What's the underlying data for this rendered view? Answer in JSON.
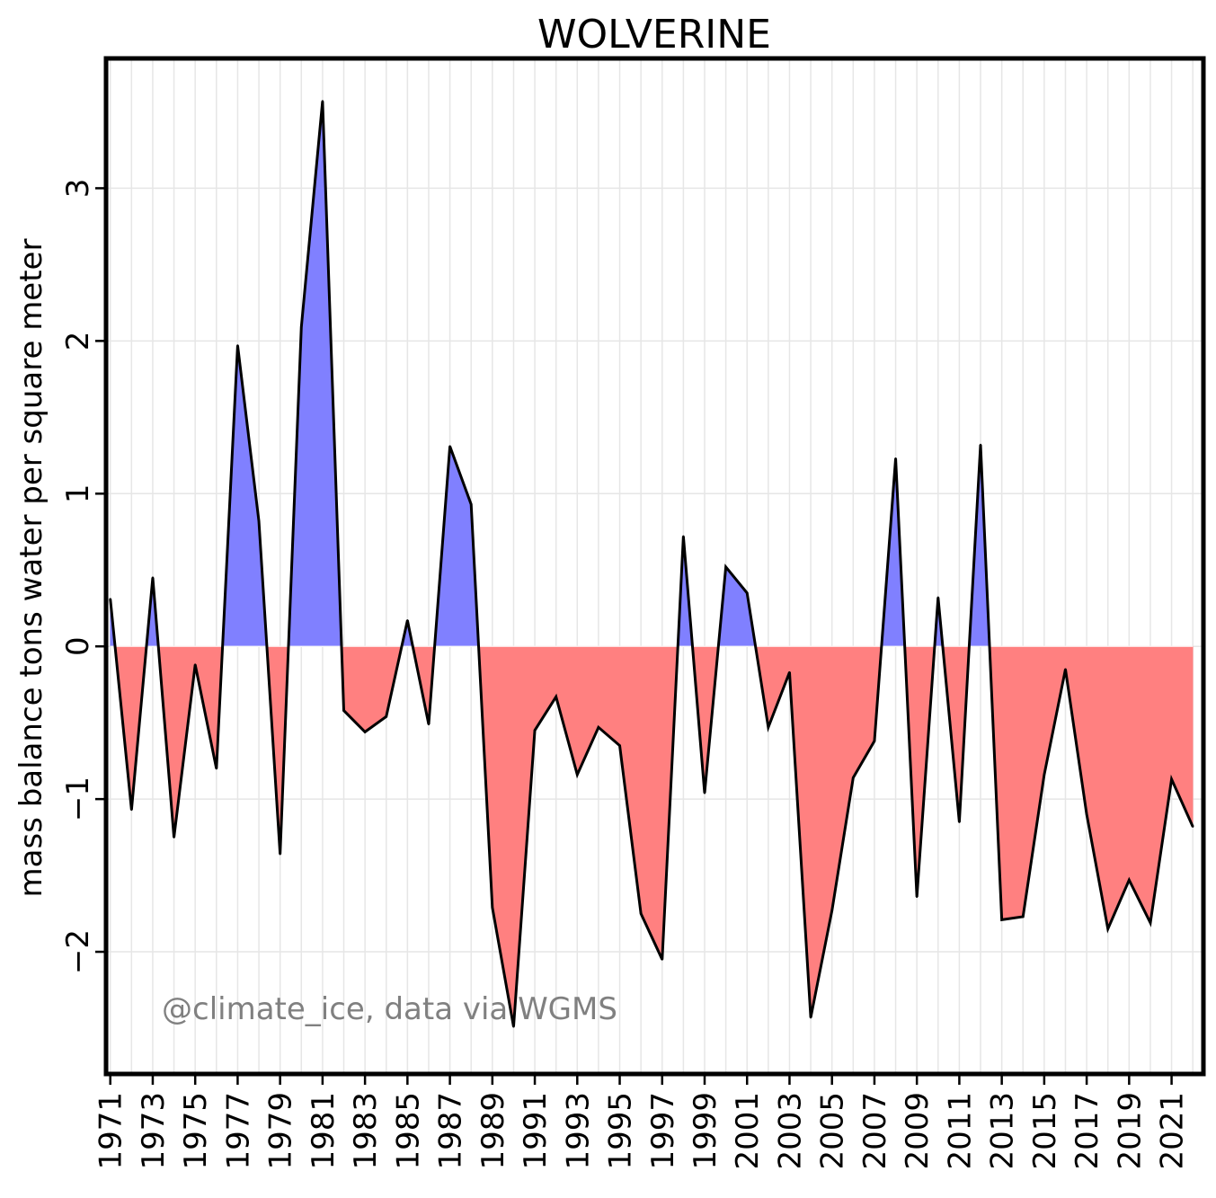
{
  "chart_data": {
    "type": "area",
    "title": "WOLVERINE",
    "xlabel": "",
    "ylabel": "mass balance tons water per square meter",
    "annotation": "@climate_ice, data via WGMS",
    "x": [
      1971,
      1972,
      1973,
      1974,
      1975,
      1976,
      1977,
      1978,
      1979,
      1980,
      1981,
      1982,
      1983,
      1984,
      1985,
      1986,
      1987,
      1988,
      1989,
      1990,
      1991,
      1992,
      1993,
      1994,
      1995,
      1996,
      1997,
      1998,
      1999,
      2000,
      2001,
      2002,
      2003,
      2004,
      2005,
      2006,
      2007,
      2008,
      2009,
      2010,
      2011,
      2012,
      2013,
      2014,
      2015,
      2016,
      2017,
      2018,
      2019,
      2020,
      2021,
      2022
    ],
    "y": [
      0.31,
      -1.07,
      0.45,
      -1.25,
      -0.12,
      -0.8,
      1.97,
      0.82,
      -1.36,
      2.09,
      3.57,
      -0.42,
      -0.56,
      -0.46,
      0.17,
      -0.51,
      1.31,
      0.93,
      -1.71,
      -2.49,
      -0.55,
      -0.33,
      -0.84,
      -0.53,
      -0.65,
      -1.75,
      -2.05,
      0.72,
      -0.96,
      0.52,
      0.35,
      -0.53,
      -0.17,
      -2.43,
      -1.73,
      -0.86,
      -0.62,
      1.23,
      -1.64,
      0.32,
      -1.15,
      1.32,
      -1.79,
      -1.77,
      -0.84,
      -0.15,
      -1.1,
      -1.85,
      -1.53,
      -1.81,
      -0.87,
      -1.18
    ],
    "xticks": [
      1971,
      1973,
      1975,
      1977,
      1979,
      1981,
      1983,
      1985,
      1987,
      1989,
      1991,
      1993,
      1995,
      1997,
      1999,
      2001,
      2003,
      2005,
      2007,
      2009,
      2011,
      2013,
      2015,
      2017,
      2019,
      2021
    ],
    "yticks": [
      -2,
      -1,
      0,
      1,
      2,
      3
    ],
    "xlim": [
      1970.8,
      2022.5
    ],
    "ylim": [
      -2.8,
      3.85
    ],
    "grid": true,
    "colors": {
      "positive": "#8080ff",
      "negative": "#ff8080",
      "line": "#000000",
      "grid": "#e6e6e6",
      "watermark": "#808080"
    }
  }
}
